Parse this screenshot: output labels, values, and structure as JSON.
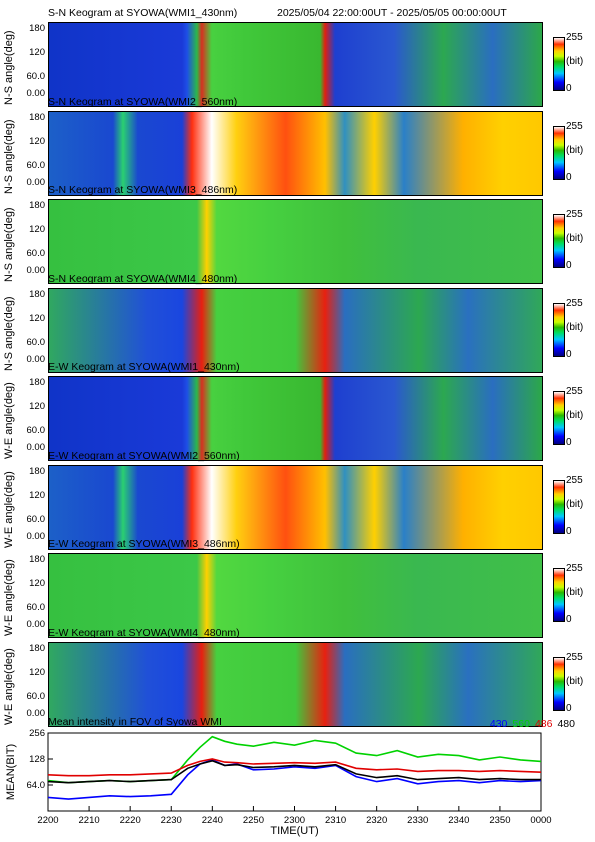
{
  "header": {
    "date_range": "2025/05/04 22:00:00UT - 2025/05/05 00:00:00UT"
  },
  "colorbar": {
    "max": "255",
    "unit": "(bit)",
    "min": "0"
  },
  "keograms": [
    {
      "title": "S-N Keogram at SYOWA(WMI1_430nm)",
      "ylabel": "N-S angle(deg)",
      "yticks": [
        "180",
        "120",
        "60.0",
        "0.00"
      ],
      "style": "b430"
    },
    {
      "title": "S-N Keogram at SYOWA(WMI2_560nm)",
      "ylabel": "N-S angle(deg)",
      "yticks": [
        "180",
        "120",
        "60.0",
        "0.00"
      ],
      "style": "b560"
    },
    {
      "title": "S-N Keogram at SYOWA(WMI3_486nm)",
      "ylabel": "N-S angle(deg)",
      "yticks": [
        "180",
        "120",
        "60.0",
        "0.00"
      ],
      "style": "b486"
    },
    {
      "title": "S-N Keogram at SYOWA(WMI4_480nm)",
      "ylabel": "N-S angle(deg)",
      "yticks": [
        "180",
        "120",
        "60.0",
        "0.00"
      ],
      "style": "b480"
    },
    {
      "title": "E-W Keogram at SYOWA(WMI1_430nm)",
      "ylabel": "W-E angle(deg)",
      "yticks": [
        "180",
        "120",
        "60.0",
        "0.00"
      ],
      "style": "b430"
    },
    {
      "title": "E-W Keogram at SYOWA(WMI2_560nm)",
      "ylabel": "W-E angle(deg)",
      "yticks": [
        "180",
        "120",
        "60.0",
        "0.00"
      ],
      "style": "b560"
    },
    {
      "title": "E-W Keogram at SYOWA(WMI3_486nm)",
      "ylabel": "W-E angle(deg)",
      "yticks": [
        "180",
        "120",
        "60.0",
        "0.00"
      ],
      "style": "b486"
    },
    {
      "title": "E-W Keogram at SYOWA(WMI4_480nm)",
      "ylabel": "W-E angle(deg)",
      "yticks": [
        "180",
        "120",
        "60.0",
        "0.00"
      ],
      "style": "b480"
    }
  ],
  "colors": {
    "c430": "#0000ff",
    "c560": "#00d200",
    "c486": "#e00000",
    "c480": "#000000"
  },
  "chart_data": {
    "type": "line",
    "title": "Mean intensity in FOV of Syowa WMI",
    "ylabel": "MEAN(BIT)",
    "xlabel": "TIME(UT)",
    "yscale": "log2",
    "ylim": [
      32,
      256
    ],
    "yticks": [
      "256",
      "128",
      "64.0"
    ],
    "ytick_values": [
      256,
      128,
      64
    ],
    "xticks": [
      "2200",
      "2210",
      "2220",
      "2230",
      "2240",
      "2250",
      "2300",
      "2310",
      "2320",
      "2330",
      "2340",
      "2350",
      "0000"
    ],
    "x": [
      "2200",
      "2205",
      "2210",
      "2215",
      "2220",
      "2225",
      "2230",
      "2234",
      "2237",
      "2240",
      "2243",
      "2246",
      "2250",
      "2255",
      "2300",
      "2305",
      "2310",
      "2315",
      "2320",
      "2325",
      "2330",
      "2335",
      "2340",
      "2345",
      "2350",
      "2355",
      "0000"
    ],
    "series": [
      {
        "name": "430",
        "color": "#0000ff",
        "values": [
          46,
          44,
          46,
          48,
          47,
          48,
          50,
          84,
          112,
          125,
          108,
          112,
          96,
          98,
          104,
          100,
          108,
          80,
          70,
          76,
          66,
          70,
          72,
          68,
          72,
          70,
          72
        ]
      },
      {
        "name": "560",
        "color": "#00d200",
        "values": [
          72,
          68,
          70,
          72,
          70,
          72,
          74,
          125,
          175,
          232,
          205,
          190,
          180,
          200,
          185,
          210,
          195,
          150,
          140,
          160,
          135,
          145,
          140,
          125,
          135,
          125,
          120
        ]
      },
      {
        "name": "486",
        "color": "#e00000",
        "values": [
          84,
          82,
          82,
          84,
          84,
          86,
          88,
          108,
          120,
          128,
          118,
          116,
          112,
          114,
          116,
          114,
          118,
          100,
          96,
          98,
          92,
          94,
          94,
          92,
          94,
          92,
          90
        ]
      },
      {
        "name": "480",
        "color": "#000000",
        "values": [
          70,
          68,
          70,
          72,
          70,
          72,
          74,
          100,
          112,
          122,
          108,
          110,
          102,
          104,
          108,
          104,
          110,
          86,
          78,
          82,
          74,
          76,
          78,
          74,
          76,
          74,
          74
        ]
      }
    ]
  }
}
